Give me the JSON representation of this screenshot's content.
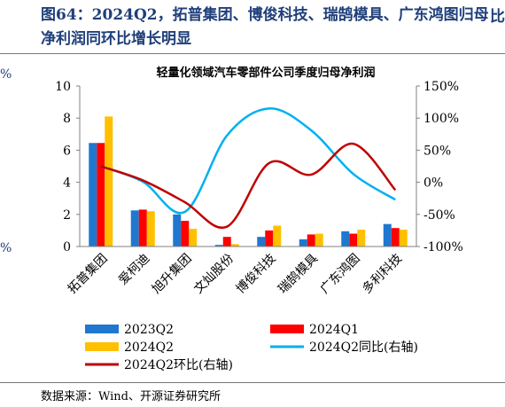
{
  "page": {
    "figure_title": "图64：2024Q2，拓普集团、博俊科技、瑞鹄模具、广东鸿图归母净利润同环比增长明显",
    "edge_left": [
      "%",
      "%"
    ],
    "edge_right": [
      "比"
    ],
    "source": "数据来源：Wind、开源证券研究所"
  },
  "chart_data": {
    "type": "bar",
    "title": "轻量化领域汽车零部件公司季度归母净利润",
    "categories": [
      "拓普集团",
      "爱柯迪",
      "旭升集团",
      "文灿股份",
      "博俊科技",
      "瑞鹄模具",
      "广东鸿图",
      "多利科技"
    ],
    "series": [
      {
        "name": "2023Q2",
        "kind": "bar",
        "axis": "left",
        "color": "#1f77d0",
        "values": [
          6.45,
          2.25,
          2.0,
          0.1,
          0.6,
          0.45,
          0.95,
          1.4
        ]
      },
      {
        "name": "2024Q1",
        "kind": "bar",
        "axis": "left",
        "color": "#ff0000",
        "values": [
          6.45,
          2.3,
          1.6,
          0.6,
          1.0,
          0.75,
          0.8,
          1.15
        ]
      },
      {
        "name": "2024Q2",
        "kind": "bar",
        "axis": "left",
        "color": "#ffc000",
        "values": [
          8.1,
          2.2,
          1.1,
          0.15,
          1.3,
          0.8,
          1.05,
          1.05
        ]
      },
      {
        "name": "2024Q2同比(右轴)",
        "kind": "line",
        "axis": "right",
        "color": "#00b0f0",
        "values": [
          25,
          1,
          -46,
          73,
          115,
          81,
          13,
          -27
        ]
      },
      {
        "name": "2024Q2环比(右轴)",
        "kind": "line",
        "axis": "right",
        "color": "#c00000",
        "values": [
          25,
          3,
          -31,
          -69,
          30,
          12,
          60,
          -12
        ]
      }
    ],
    "y_left": {
      "min": 0,
      "max": 10,
      "ticks": [
        "0",
        "2",
        "4",
        "6",
        "8",
        "10"
      ]
    },
    "y_right": {
      "min": -100,
      "max": 150,
      "ticks": [
        "-100%",
        "-50%",
        "0%",
        "50%",
        "100%",
        "150%"
      ]
    },
    "grid": false,
    "legend_position": "bottom"
  }
}
